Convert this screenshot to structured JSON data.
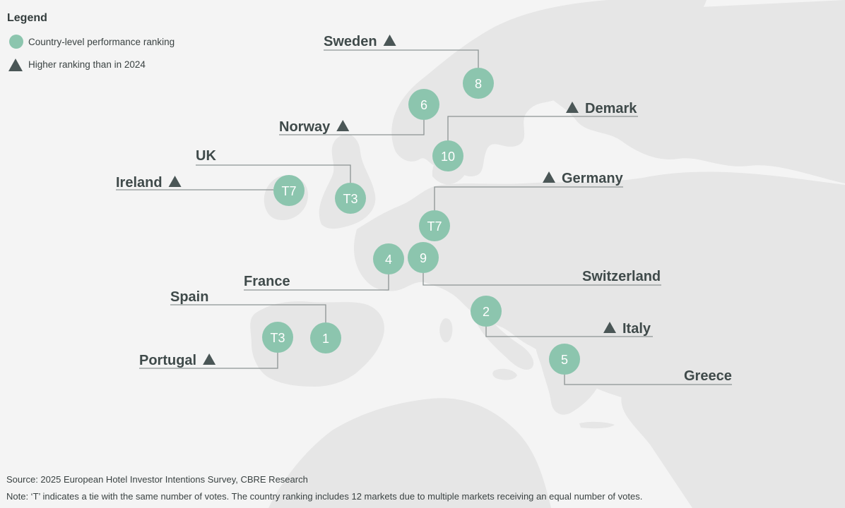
{
  "legend": {
    "title": "Legend",
    "items": [
      {
        "symbol": "circle",
        "label": "Country-level performance ranking"
      },
      {
        "symbol": "triangle",
        "label": "Higher ranking than in 2024"
      }
    ]
  },
  "colors": {
    "background": "#f4f4f4",
    "land": "#e6e6e6",
    "marker": "#8cc5ae",
    "triangle": "#4a5656",
    "label": "#3f4a4a",
    "leader": "#8c9494"
  },
  "markets": [
    {
      "id": "sweden",
      "country": "Sweden",
      "rank": "8",
      "higher_than_2024": true
    },
    {
      "id": "norway",
      "country": "Norway",
      "rank": "6",
      "higher_than_2024": true
    },
    {
      "id": "denmark",
      "country": "Demark",
      "rank": "10",
      "higher_than_2024": true
    },
    {
      "id": "uk",
      "country": "UK",
      "rank": "T3",
      "higher_than_2024": false
    },
    {
      "id": "ireland",
      "country": "Ireland",
      "rank": "T7",
      "higher_than_2024": true
    },
    {
      "id": "germany",
      "country": "Germany",
      "rank": "T7",
      "higher_than_2024": true
    },
    {
      "id": "france",
      "country": "France",
      "rank": "4",
      "higher_than_2024": false
    },
    {
      "id": "switzerland",
      "country": "Switzerland",
      "rank": "9",
      "higher_than_2024": false
    },
    {
      "id": "spain",
      "country": "Spain",
      "rank": "1",
      "higher_than_2024": false
    },
    {
      "id": "portugal",
      "country": "Portugal",
      "rank": "T3",
      "higher_than_2024": true
    },
    {
      "id": "italy",
      "country": "Italy",
      "rank": "2",
      "higher_than_2024": true
    },
    {
      "id": "greece",
      "country": "Greece",
      "rank": "5",
      "higher_than_2024": false
    }
  ],
  "footer": {
    "source": "Source: 2025 European Hotel Investor Intentions Survey, CBRE Research",
    "note": "Note: ‘T’ indicates a tie with the same number of votes. The country ranking includes 12 markets due to multiple markets receiving an equal number of votes."
  }
}
